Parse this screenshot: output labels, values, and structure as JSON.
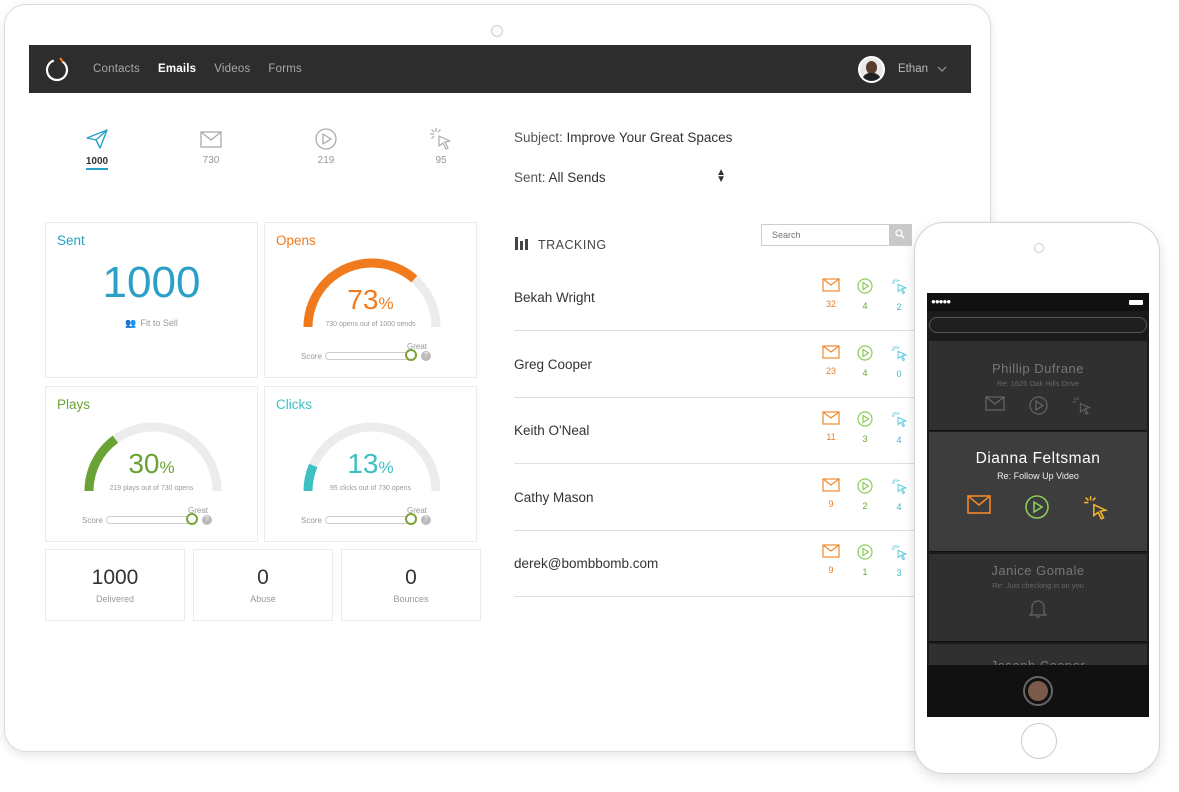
{
  "nav": {
    "links": [
      "Contacts",
      "Emails",
      "Videos",
      "Forms"
    ],
    "active": "Emails",
    "user_name": "Ethan"
  },
  "stat_tabs": [
    {
      "icon": "send-icon",
      "value": "1000",
      "active": true
    },
    {
      "icon": "envelope-icon",
      "value": "730",
      "active": false
    },
    {
      "icon": "play-icon",
      "value": "219",
      "active": false
    },
    {
      "icon": "click-icon",
      "value": "95",
      "active": false
    }
  ],
  "subject": {
    "label": "Subject:",
    "value": "Improve Your Great Spaces"
  },
  "sent": {
    "label": "Sent:",
    "value": "All Sends"
  },
  "cards": {
    "sent": {
      "title": "Sent",
      "value": "1000",
      "sub": "Fit to Sell"
    },
    "opens": {
      "title": "Opens",
      "percent": "73",
      "percent_sign": "%",
      "sub": "730 opens out of 1000 sends",
      "score_label": "Score",
      "great_label": "Great",
      "fill": 0.73
    },
    "plays": {
      "title": "Plays",
      "percent": "30",
      "percent_sign": "%",
      "sub": "219 plays out of 730 opens",
      "score_label": "Score",
      "great_label": "Great",
      "fill": 0.3
    },
    "clicks": {
      "title": "Clicks",
      "percent": "13",
      "percent_sign": "%",
      "sub": "95 clicks out of 730 opens",
      "score_label": "Score",
      "great_label": "Great",
      "fill": 0.13
    }
  },
  "small_cards": [
    {
      "value": "1000",
      "label": "Delivered"
    },
    {
      "value": "0",
      "label": "Abuse"
    },
    {
      "value": "0",
      "label": "Bounces"
    }
  ],
  "tracking": {
    "title": "TRACKING",
    "search_placeholder": "Search",
    "rows": [
      {
        "name": "Bekah Wright",
        "emails": "32",
        "plays": "4",
        "clicks": "2"
      },
      {
        "name": "Greg Cooper",
        "emails": "23",
        "plays": "4",
        "clicks": "0"
      },
      {
        "name": "Keith O'Neal",
        "emails": "11",
        "plays": "3",
        "clicks": "4"
      },
      {
        "name": "Cathy Mason",
        "emails": "9",
        "plays": "2",
        "clicks": "4"
      },
      {
        "name": "derek@bombbomb.com",
        "emails": "9",
        "plays": "1",
        "clicks": "3"
      }
    ]
  },
  "phone": {
    "status_dots": "●●●●●",
    "items": [
      {
        "name": "Phillip Dufrane",
        "re": "Re: 1626 Oak Hills Drive"
      },
      {
        "name": "Dianna Feltsman",
        "re": "Re: Follow Up Video"
      },
      {
        "name": "Janice Gomale",
        "re": "Re: Just checking in on you"
      },
      {
        "name": "Joseph Cooper",
        "re": ""
      }
    ]
  },
  "colors": {
    "sent": "#2aa0c7",
    "opens": "#f07a1c",
    "plays": "#6aa334",
    "clicks": "#3cc0c2",
    "nav_bg": "#2d2d2d",
    "email_icon": "#f0882c",
    "play_icon": "#8ccc5a",
    "click_icon": "#5bc6dc"
  }
}
